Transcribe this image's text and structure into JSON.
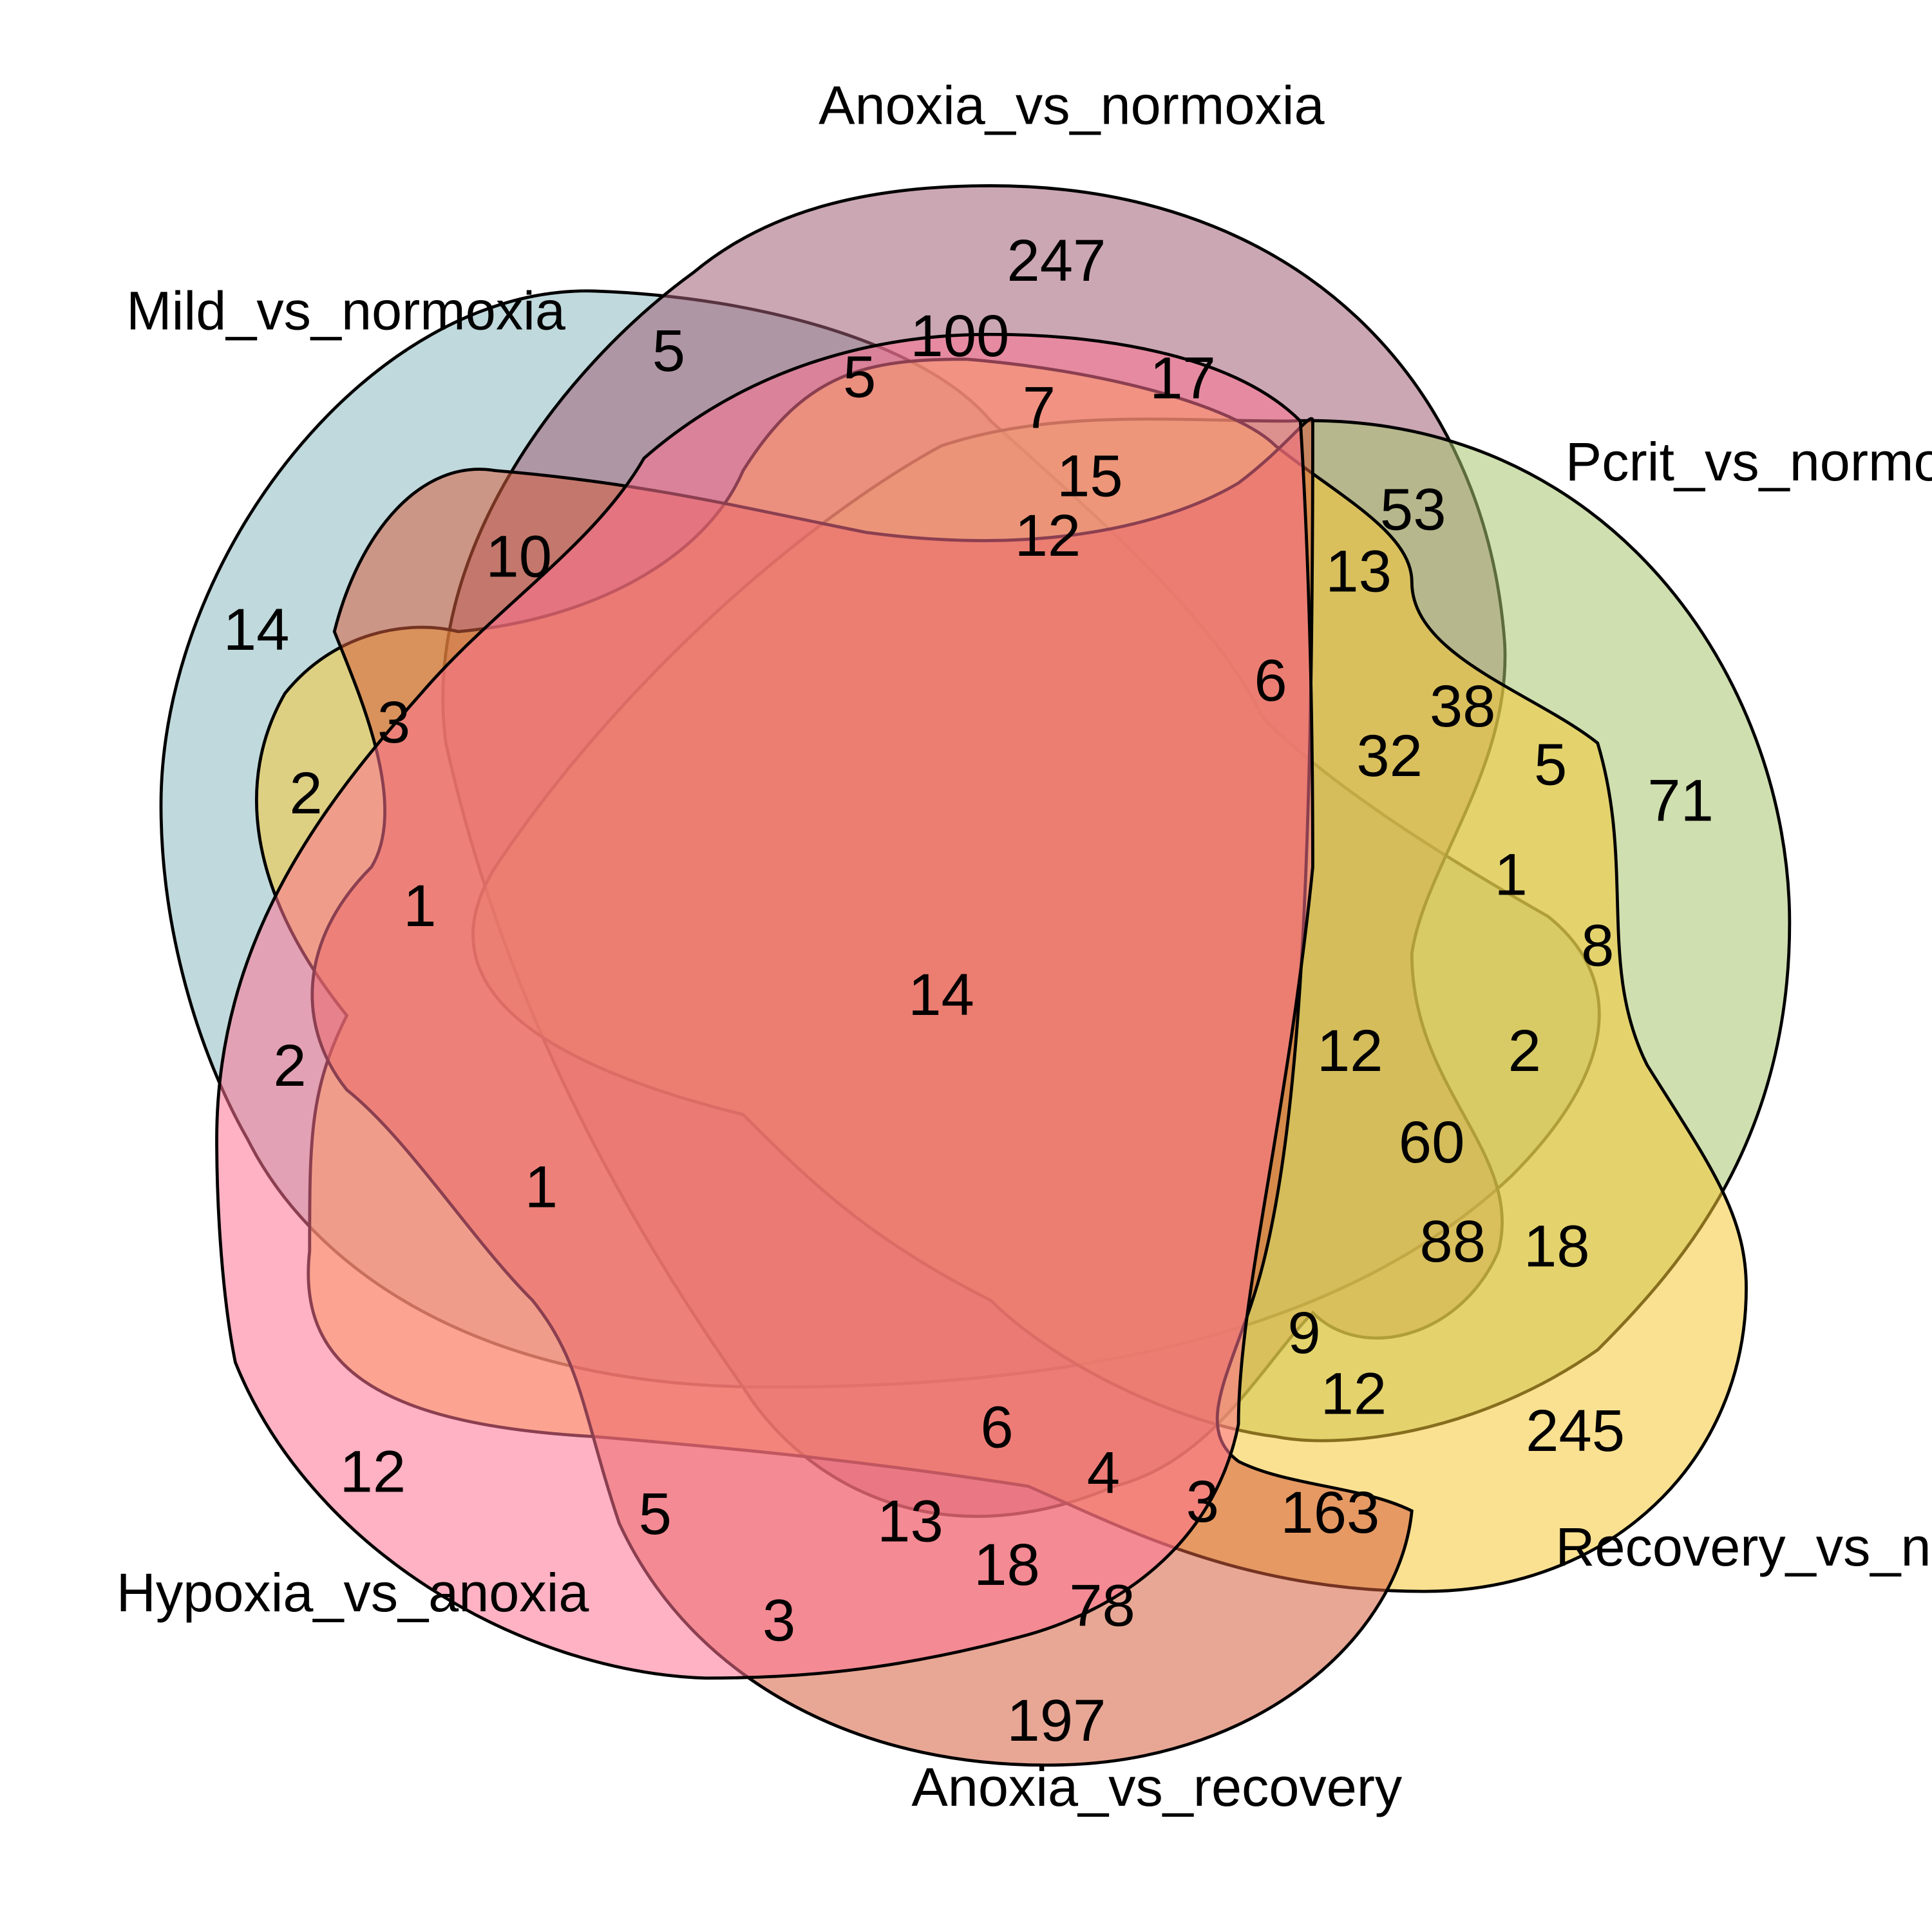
{
  "sets": [
    {
      "name": "Mild_vs_normoxia",
      "color": "#8DBAC1"
    },
    {
      "name": "Anoxia_vs_normoxia",
      "color": "#A15F75"
    },
    {
      "name": "Pcrit_vs_normoxia",
      "color": "#A7C56D"
    },
    {
      "name": "Recovery_vs_normoxia",
      "color": "#F6C936"
    },
    {
      "name": "Anoxia_vs_recovery",
      "color": "#D55E3E"
    },
    {
      "name": "Hypoxia_vs_anoxia",
      "color": "#FE7392"
    }
  ],
  "counts": [
    "247",
    "5",
    "100",
    "5",
    "17",
    "7",
    "15",
    "12",
    "53",
    "13",
    "10",
    "14",
    "6",
    "38",
    "32",
    "5",
    "71",
    "3",
    "2",
    "1",
    "1",
    "8",
    "14",
    "12",
    "2",
    "2",
    "60",
    "1",
    "88",
    "18",
    "9",
    "12",
    "245",
    "6",
    "4",
    "3",
    "163",
    "12",
    "5",
    "13",
    "18",
    "3",
    "78",
    "197"
  ]
}
